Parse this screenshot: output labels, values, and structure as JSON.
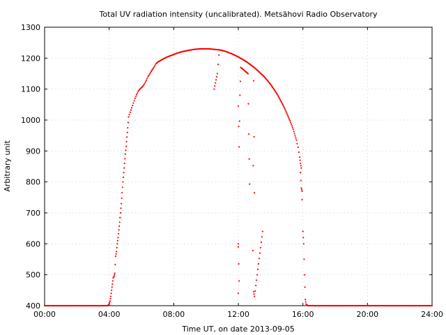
{
  "chart_data": {
    "type": "scatter",
    "title": "Total UV radiation intensity (uncalibrated). Metsähovi Radio Observatory",
    "xlabel": "Time UT, on date 2013-09-05",
    "ylabel": "Arbitrary unit",
    "xlim_hours": [
      0,
      24
    ],
    "ylim": [
      400,
      1300
    ],
    "x_ticks": [
      {
        "value": 0,
        "label": "00:00"
      },
      {
        "value": 4,
        "label": "04:00"
      },
      {
        "value": 8,
        "label": "08:00"
      },
      {
        "value": 12,
        "label": "12:00"
      },
      {
        "value": 16,
        "label": "16:00"
      },
      {
        "value": 20,
        "label": "20:00"
      },
      {
        "value": 24,
        "label": "24:00"
      }
    ],
    "y_ticks": [
      400,
      500,
      600,
      700,
      800,
      900,
      1000,
      1100,
      1200,
      1300
    ],
    "grid": true,
    "point_color": "#ff0000",
    "series": [
      {
        "points_hours_value": [
          [
            0.0,
            400
          ],
          [
            0.5,
            400
          ],
          [
            1.0,
            400
          ],
          [
            1.5,
            400
          ],
          [
            2.0,
            400
          ],
          [
            2.5,
            400
          ],
          [
            3.0,
            400
          ],
          [
            3.5,
            400
          ],
          [
            3.9,
            400
          ],
          [
            4.0,
            405
          ],
          [
            4.05,
            415
          ],
          [
            4.1,
            430
          ],
          [
            4.15,
            450
          ],
          [
            4.2,
            470
          ],
          [
            4.25,
            490
          ],
          [
            4.3,
            495
          ],
          [
            4.35,
            505
          ],
          [
            4.4,
            560
          ],
          [
            4.45,
            575
          ],
          [
            4.5,
            600
          ],
          [
            4.55,
            620
          ],
          [
            4.6,
            645
          ],
          [
            4.65,
            670
          ],
          [
            4.7,
            700
          ],
          [
            4.75,
            730
          ],
          [
            4.8,
            765
          ],
          [
            4.85,
            800
          ],
          [
            4.9,
            830
          ],
          [
            4.95,
            860
          ],
          [
            5.0,
            890
          ],
          [
            5.05,
            915
          ],
          [
            5.1,
            945
          ],
          [
            5.15,
            975
          ],
          [
            5.2,
            1010
          ],
          [
            5.3,
            1025
          ],
          [
            5.4,
            1040
          ],
          [
            5.5,
            1055
          ],
          [
            5.6,
            1070
          ],
          [
            5.7,
            1082
          ],
          [
            5.8,
            1093
          ],
          [
            5.9,
            1100
          ],
          [
            6.0,
            1105
          ],
          [
            6.1,
            1110
          ],
          [
            6.2,
            1118
          ],
          [
            6.3,
            1128
          ],
          [
            6.4,
            1140
          ],
          [
            6.5,
            1148
          ],
          [
            6.6,
            1157
          ],
          [
            6.7,
            1165
          ],
          [
            6.8,
            1173
          ],
          [
            6.9,
            1182
          ],
          [
            7.0,
            1187
          ],
          [
            7.2,
            1193
          ],
          [
            7.4,
            1199
          ],
          [
            7.6,
            1204
          ],
          [
            7.8,
            1208
          ],
          [
            8.0,
            1212
          ],
          [
            8.2,
            1216
          ],
          [
            8.4,
            1219
          ],
          [
            8.6,
            1222
          ],
          [
            8.8,
            1224
          ],
          [
            9.0,
            1226
          ],
          [
            9.2,
            1228
          ],
          [
            9.4,
            1229
          ],
          [
            9.6,
            1230
          ],
          [
            9.8,
            1230
          ],
          [
            10.0,
            1230
          ],
          [
            10.2,
            1230
          ],
          [
            10.4,
            1229
          ],
          [
            10.6,
            1228
          ],
          [
            10.8,
            1227
          ],
          [
            11.0,
            1225
          ],
          [
            11.2,
            1222
          ],
          [
            11.4,
            1218
          ],
          [
            11.6,
            1214
          ],
          [
            11.8,
            1209
          ],
          [
            12.0,
            1204
          ],
          [
            12.2,
            1198
          ],
          [
            12.4,
            1192
          ],
          [
            12.6,
            1185
          ],
          [
            12.8,
            1177
          ],
          [
            13.0,
            1169
          ],
          [
            13.2,
            1160
          ],
          [
            13.4,
            1150
          ],
          [
            13.6,
            1140
          ],
          [
            13.8,
            1128
          ],
          [
            14.0,
            1115
          ],
          [
            14.2,
            1100
          ],
          [
            14.4,
            1084
          ],
          [
            14.6,
            1065
          ],
          [
            14.8,
            1045
          ],
          [
            15.0,
            1022
          ],
          [
            15.2,
            998
          ],
          [
            15.4,
            970
          ],
          [
            15.6,
            935
          ],
          [
            15.7,
            912
          ],
          [
            15.8,
            880
          ],
          [
            15.85,
            860
          ],
          [
            15.9,
            845
          ],
          [
            16.0,
            640
          ],
          [
            16.05,
            600
          ],
          [
            16.1,
            500
          ],
          [
            16.15,
            420
          ],
          [
            16.2,
            405
          ],
          [
            16.3,
            400
          ],
          [
            16.6,
            400
          ],
          [
            17.0,
            400
          ],
          [
            17.5,
            400
          ],
          [
            18.0,
            400
          ],
          [
            18.5,
            400
          ],
          [
            19.0,
            400
          ],
          [
            19.5,
            400
          ],
          [
            20.0,
            400
          ],
          [
            20.5,
            400
          ],
          [
            21.0,
            400
          ],
          [
            21.5,
            400
          ],
          [
            22.0,
            400
          ],
          [
            22.5,
            400
          ],
          [
            23.0,
            400
          ],
          [
            23.5,
            400
          ],
          [
            24.0,
            400
          ],
          [
            10.5,
            1100
          ],
          [
            10.7,
            1150
          ],
          [
            10.8,
            1210
          ],
          [
            12.0,
            1045
          ],
          [
            12.05,
            913
          ],
          [
            12.1,
            1080
          ],
          [
            12.15,
            1170
          ],
          [
            12.6,
            1150
          ],
          [
            12.65,
            955
          ],
          [
            12.7,
            793
          ],
          [
            12.0,
            600
          ],
          [
            12.0,
            590
          ],
          [
            12.05,
            480
          ],
          [
            12.0,
            440
          ],
          [
            12.9,
            578
          ],
          [
            12.95,
            1127
          ],
          [
            13.0,
            765
          ],
          [
            12.95,
            445
          ],
          [
            13.0,
            430
          ],
          [
            13.5,
            640
          ],
          [
            15.85,
            830
          ],
          [
            15.9,
            780
          ],
          [
            15.95,
            770
          ]
        ]
      }
    ]
  }
}
